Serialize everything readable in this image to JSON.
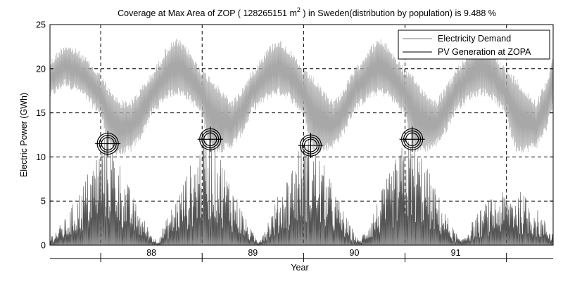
{
  "chart_data": {
    "type": "line",
    "title": {
      "prefix": "Coverage at Max Area of ZOP ( 128265151 m",
      "superscript": "2",
      "suffix": " ) in Sweden(distribution by population) is 9.488 %"
    },
    "xlabel": "Year",
    "ylabel": "Electric Power (GWh)",
    "xlim": [
      87.0,
      91.96
    ],
    "ylim": [
      0,
      25
    ],
    "yticks": [
      0,
      5,
      10,
      15,
      20,
      25
    ],
    "xticks": [
      87.5,
      88.5,
      89.5,
      90.5,
      91.5
    ],
    "xtick_labels": [
      {
        "x": 88,
        "label": "88"
      },
      {
        "x": 89,
        "label": "89"
      },
      {
        "x": 90,
        "label": "90"
      },
      {
        "x": 91,
        "label": "91"
      }
    ],
    "grid": true,
    "legend_position": "top-right",
    "series": [
      {
        "name": "Electricity Demand",
        "color": "#a8a8a8",
        "daily_oscillation": true,
        "envelope_upper": [
          [
            87.0,
            21.0
          ],
          [
            87.15,
            23.0
          ],
          [
            87.3,
            22.0
          ],
          [
            87.5,
            19.5
          ],
          [
            87.6,
            17.5
          ],
          [
            87.7,
            16.5
          ],
          [
            87.8,
            16.5
          ],
          [
            87.9,
            18.0
          ],
          [
            88.0,
            19.5
          ],
          [
            88.15,
            22.5
          ],
          [
            88.25,
            23.5
          ],
          [
            88.35,
            22.5
          ],
          [
            88.5,
            20.0
          ],
          [
            88.6,
            19.0
          ],
          [
            88.7,
            17.5
          ],
          [
            88.8,
            16.5
          ],
          [
            88.9,
            18.0
          ],
          [
            89.0,
            20.0
          ],
          [
            89.15,
            22.5
          ],
          [
            89.25,
            23.5
          ],
          [
            89.35,
            22.5
          ],
          [
            89.5,
            20.0
          ],
          [
            89.6,
            19.0
          ],
          [
            89.7,
            17.5
          ],
          [
            89.8,
            16.5
          ],
          [
            89.9,
            18.0
          ],
          [
            90.0,
            20.0
          ],
          [
            90.15,
            22.5
          ],
          [
            90.25,
            23.5
          ],
          [
            90.35,
            22.5
          ],
          [
            90.5,
            20.0
          ],
          [
            90.6,
            19.0
          ],
          [
            90.7,
            17.5
          ],
          [
            90.8,
            16.5
          ],
          [
            90.9,
            18.0
          ],
          [
            91.0,
            20.0
          ],
          [
            91.15,
            22.5
          ],
          [
            91.25,
            23.5
          ],
          [
            91.35,
            22.5
          ],
          [
            91.5,
            20.0
          ],
          [
            91.6,
            19.0
          ],
          [
            91.7,
            17.5
          ],
          [
            91.8,
            16.5
          ],
          [
            91.9,
            19.0
          ],
          [
            91.96,
            22.0
          ]
        ],
        "envelope_lower": [
          [
            87.0,
            16.5
          ],
          [
            87.15,
            18.0
          ],
          [
            87.3,
            17.0
          ],
          [
            87.5,
            14.5
          ],
          [
            87.55,
            12.5
          ],
          [
            87.6,
            10.5
          ],
          [
            87.7,
            10.0
          ],
          [
            87.8,
            10.5
          ],
          [
            87.9,
            12.0
          ],
          [
            88.0,
            14.5
          ],
          [
            88.15,
            16.5
          ],
          [
            88.25,
            17.0
          ],
          [
            88.35,
            16.5
          ],
          [
            88.5,
            14.5
          ],
          [
            88.55,
            12.0
          ],
          [
            88.6,
            10.5
          ],
          [
            88.7,
            10.5
          ],
          [
            88.8,
            11.0
          ],
          [
            88.9,
            12.5
          ],
          [
            89.0,
            15.0
          ],
          [
            89.15,
            16.5
          ],
          [
            89.25,
            17.0
          ],
          [
            89.35,
            16.5
          ],
          [
            89.5,
            14.5
          ],
          [
            89.55,
            12.0
          ],
          [
            89.6,
            10.5
          ],
          [
            89.7,
            10.5
          ],
          [
            89.8,
            11.0
          ],
          [
            89.9,
            12.5
          ],
          [
            90.0,
            15.0
          ],
          [
            90.15,
            16.5
          ],
          [
            90.25,
            17.0
          ],
          [
            90.35,
            16.5
          ],
          [
            90.5,
            14.5
          ],
          [
            90.55,
            12.0
          ],
          [
            90.6,
            10.5
          ],
          [
            90.7,
            10.5
          ],
          [
            90.8,
            11.0
          ],
          [
            90.9,
            12.5
          ],
          [
            91.0,
            15.0
          ],
          [
            91.15,
            16.5
          ],
          [
            91.25,
            17.0
          ],
          [
            91.35,
            16.5
          ],
          [
            91.5,
            14.5
          ],
          [
            91.55,
            12.0
          ],
          [
            91.6,
            10.5
          ],
          [
            91.7,
            10.5
          ],
          [
            91.8,
            11.0
          ],
          [
            91.9,
            13.0
          ],
          [
            91.96,
            15.5
          ]
        ]
      },
      {
        "name": "PV Generation at ZOPA",
        "color": "#555555",
        "daily_oscillation": true,
        "seasonal_peak_envelope": [
          [
            87.0,
            1.0
          ],
          [
            87.15,
            3.0
          ],
          [
            87.3,
            6.5
          ],
          [
            87.45,
            10.5
          ],
          [
            87.55,
            13.0
          ],
          [
            87.65,
            11.0
          ],
          [
            87.8,
            6.0
          ],
          [
            87.95,
            2.5
          ],
          [
            88.05,
            0.5
          ],
          [
            88.15,
            3.0
          ],
          [
            88.3,
            7.0
          ],
          [
            88.45,
            11.0
          ],
          [
            88.55,
            13.5
          ],
          [
            88.65,
            11.5
          ],
          [
            88.8,
            7.0
          ],
          [
            88.95,
            2.5
          ],
          [
            89.05,
            0.5
          ],
          [
            89.15,
            3.0
          ],
          [
            89.3,
            7.0
          ],
          [
            89.45,
            11.5
          ],
          [
            89.55,
            12.5
          ],
          [
            89.65,
            10.5
          ],
          [
            89.8,
            6.5
          ],
          [
            89.95,
            2.5
          ],
          [
            90.05,
            0.5
          ],
          [
            90.15,
            3.0
          ],
          [
            90.3,
            7.0
          ],
          [
            90.45,
            11.0
          ],
          [
            90.55,
            12.5
          ],
          [
            90.65,
            11.0
          ],
          [
            90.8,
            6.5
          ],
          [
            90.95,
            2.5
          ],
          [
            91.05,
            0.5
          ],
          [
            91.15,
            2.5
          ],
          [
            91.3,
            5.0
          ],
          [
            91.45,
            6.0
          ],
          [
            91.6,
            6.5
          ],
          [
            91.75,
            5.0
          ],
          [
            91.9,
            2.5
          ],
          [
            91.96,
            1.5
          ]
        ]
      }
    ],
    "markers": [
      {
        "type": "crosshair-circle",
        "x": 87.57,
        "y": 11.5
      },
      {
        "type": "crosshair-circle",
        "x": 88.58,
        "y": 12.0
      },
      {
        "type": "crosshair-circle",
        "x": 89.57,
        "y": 11.3
      },
      {
        "type": "crosshair-circle",
        "x": 90.57,
        "y": 12.0
      }
    ]
  }
}
